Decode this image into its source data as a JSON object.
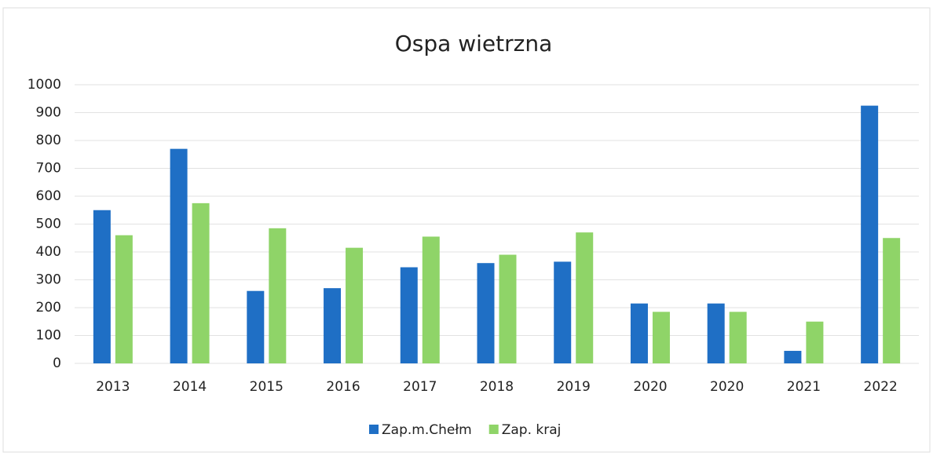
{
  "chart_data": {
    "type": "bar",
    "title": "Ospa wietrzna",
    "categories": [
      "2013",
      "2014",
      "2015",
      "2016",
      "2017",
      "2018",
      "2019",
      "2020",
      "2020",
      "2021",
      "2022"
    ],
    "series": [
      {
        "name": "Zap.m.Chełm",
        "color": "#1f6fc5",
        "values": [
          550,
          770,
          260,
          270,
          345,
          360,
          365,
          215,
          215,
          45,
          925
        ]
      },
      {
        "name": "Zap. kraj",
        "color": "#8fd468",
        "values": [
          460,
          575,
          485,
          415,
          455,
          390,
          470,
          185,
          185,
          150,
          450
        ]
      }
    ],
    "ylim": [
      0,
      1000
    ],
    "yticks": [
      0,
      100,
      200,
      300,
      400,
      500,
      600,
      700,
      800,
      900,
      1000
    ],
    "grid": true,
    "legend": "bottom"
  }
}
